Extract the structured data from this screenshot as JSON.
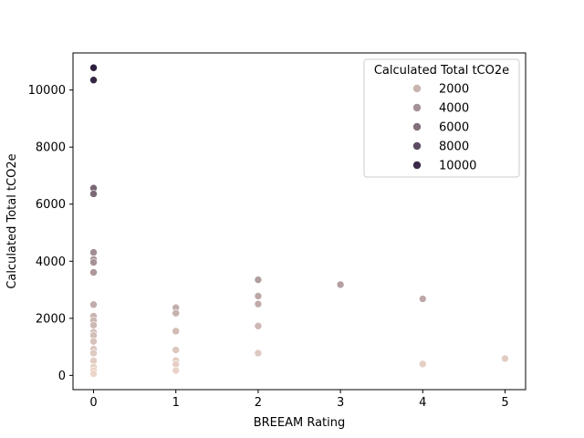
{
  "chart_data": {
    "type": "scatter",
    "title": "",
    "xlabel": "BREEAM Rating",
    "ylabel": "Calculated Total tCO2e",
    "xlim": [
      -0.25,
      5.25
    ],
    "ylim": [
      -500,
      11300
    ],
    "xticks": [
      0,
      1,
      2,
      3,
      4,
      5
    ],
    "yticks": [
      0,
      2000,
      4000,
      6000,
      8000,
      10000
    ],
    "grid": false,
    "hue": "Calculated Total tCO2e",
    "hue_range": [
      0,
      10780
    ],
    "legend": {
      "title": "Calculated Total tCO2e",
      "placement": "top-right",
      "entries": [
        {
          "label": "2000",
          "value": 2000
        },
        {
          "label": "4000",
          "value": 4000
        },
        {
          "label": "6000",
          "value": 6000
        },
        {
          "label": "8000",
          "value": 8000
        },
        {
          "label": "10000",
          "value": 10000
        }
      ]
    },
    "points": [
      {
        "x": 0,
        "y": 10780
      },
      {
        "x": 0,
        "y": 10350
      },
      {
        "x": 0,
        "y": 6560
      },
      {
        "x": 0,
        "y": 6360
      },
      {
        "x": 0,
        "y": 4310
      },
      {
        "x": 0,
        "y": 4060
      },
      {
        "x": 0,
        "y": 3960
      },
      {
        "x": 0,
        "y": 3610
      },
      {
        "x": 0,
        "y": 2480
      },
      {
        "x": 0,
        "y": 2070
      },
      {
        "x": 0,
        "y": 1920
      },
      {
        "x": 0,
        "y": 1760
      },
      {
        "x": 0,
        "y": 1510
      },
      {
        "x": 0,
        "y": 1400
      },
      {
        "x": 0,
        "y": 1190
      },
      {
        "x": 0,
        "y": 920
      },
      {
        "x": 0,
        "y": 780
      },
      {
        "x": 0,
        "y": 510
      },
      {
        "x": 0,
        "y": 290
      },
      {
        "x": 0,
        "y": 170
      },
      {
        "x": 0,
        "y": 60
      },
      {
        "x": 1,
        "y": 2370
      },
      {
        "x": 1,
        "y": 2180
      },
      {
        "x": 1,
        "y": 1550
      },
      {
        "x": 1,
        "y": 890
      },
      {
        "x": 1,
        "y": 520
      },
      {
        "x": 1,
        "y": 390
      },
      {
        "x": 1,
        "y": 170
      },
      {
        "x": 2,
        "y": 3350
      },
      {
        "x": 2,
        "y": 2780
      },
      {
        "x": 2,
        "y": 2500
      },
      {
        "x": 2,
        "y": 1730
      },
      {
        "x": 2,
        "y": 780
      },
      {
        "x": 3,
        "y": 3180
      },
      {
        "x": 4,
        "y": 2680
      },
      {
        "x": 4,
        "y": 400
      },
      {
        "x": 5,
        "y": 590
      }
    ]
  }
}
